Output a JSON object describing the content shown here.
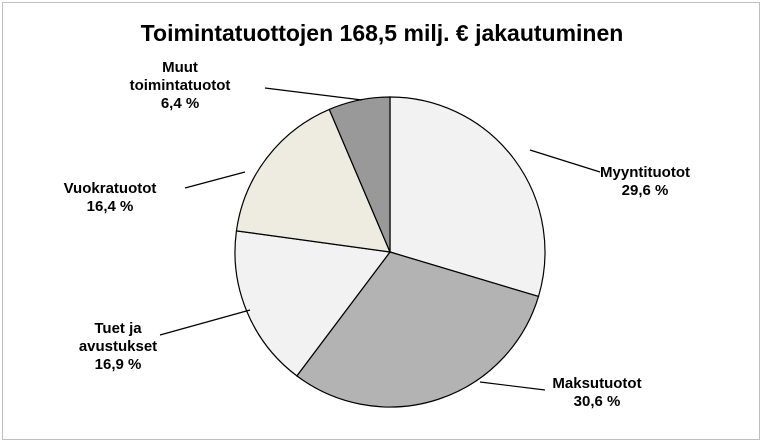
{
  "chart_data": {
    "type": "pie",
    "title": "Toimintatuottojen 168,5 milj. € jakautuminen",
    "categories": [
      "Myyntituotot",
      "Maksutuotot",
      "Tuet ja avustukset",
      "Vuokratuotot",
      "Muut toimintatuotot"
    ],
    "values": [
      29.6,
      30.6,
      16.9,
      16.4,
      6.4
    ],
    "value_labels": [
      "29,6 %",
      "30,6 %",
      "16,9 %",
      "16,4 %",
      "6,4 %"
    ],
    "colors": [
      "#f2f2f2",
      "#b3b3b3",
      "#f2f2f2",
      "#eeece1",
      "#999999"
    ]
  }
}
